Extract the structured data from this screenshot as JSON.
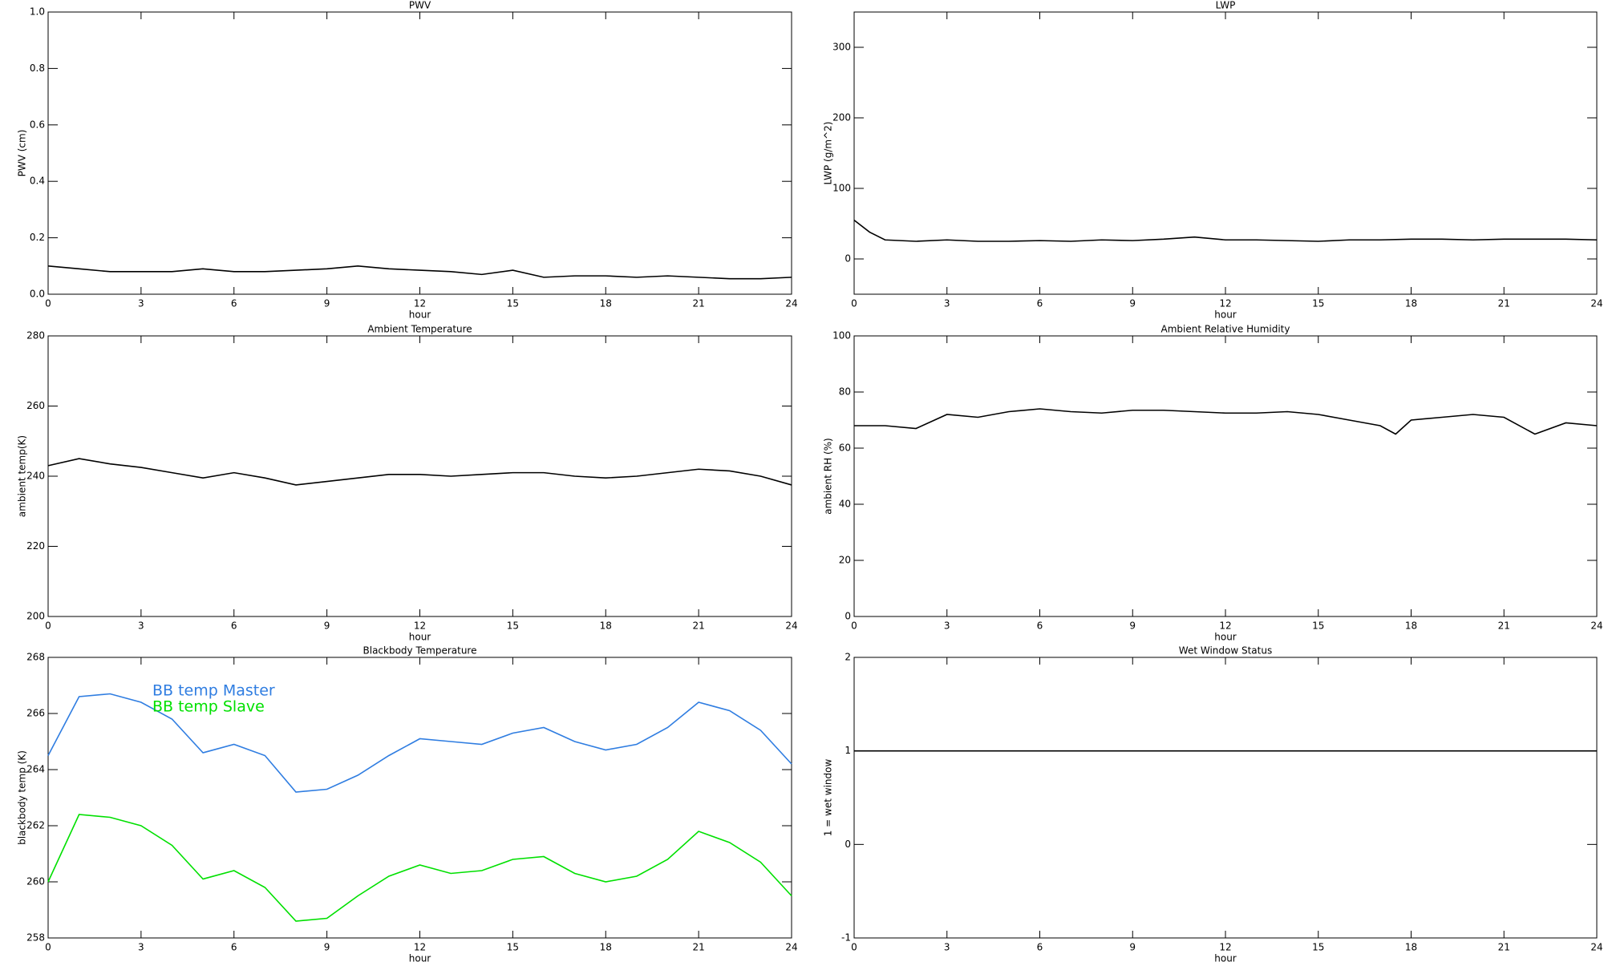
{
  "chart_data": [
    {
      "type": "line",
      "title": "PWV",
      "xlabel": "hour",
      "ylabel": "PWV (cm)",
      "color": "#000000",
      "x": [
        0,
        1,
        2,
        3,
        4,
        5,
        6,
        7,
        8,
        9,
        10,
        11,
        12,
        13,
        14,
        15,
        16,
        17,
        18,
        19,
        20,
        21,
        22,
        23,
        24
      ],
      "values": [
        0.1,
        0.09,
        0.08,
        0.08,
        0.08,
        0.09,
        0.08,
        0.08,
        0.085,
        0.09,
        0.1,
        0.09,
        0.085,
        0.08,
        0.07,
        0.085,
        0.06,
        0.065,
        0.065,
        0.06,
        0.065,
        0.06,
        0.055,
        0.055,
        0.06
      ],
      "xlim": [
        0,
        24
      ],
      "xticks": [
        0,
        3,
        6,
        9,
        12,
        15,
        18,
        21,
        24
      ],
      "ylim": [
        0,
        1
      ],
      "yticks": [
        {
          "value": 0,
          "label": "0.0"
        },
        0.2,
        0.4,
        0.6,
        0.8,
        {
          "value": 1,
          "label": "1.0"
        }
      ]
    },
    {
      "type": "line",
      "title": "LWP",
      "xlabel": "hour",
      "ylabel": "LWP (g/m^2)",
      "color": "#000000",
      "x": [
        0,
        0.5,
        1,
        2,
        3,
        4,
        5,
        6,
        7,
        8,
        9,
        10,
        11,
        12,
        13,
        14,
        15,
        16,
        17,
        18,
        19,
        20,
        21,
        22,
        23,
        24
      ],
      "values": [
        55,
        38,
        27,
        25,
        27,
        25,
        25,
        26,
        25,
        27,
        26,
        28,
        31,
        27,
        27,
        26,
        25,
        27,
        27,
        28,
        28,
        27,
        28,
        28,
        28,
        27
      ],
      "xlim": [
        0,
        24
      ],
      "xticks": [
        0,
        3,
        6,
        9,
        12,
        15,
        18,
        21,
        24
      ],
      "ylim": [
        -50,
        350
      ],
      "yticks": [
        0,
        100,
        200,
        300
      ]
    },
    {
      "type": "line",
      "title": "Ambient Temperature",
      "xlabel": "hour",
      "ylabel": "ambient temp(K)",
      "color": "#000000",
      "x": [
        0,
        1,
        2,
        3,
        4,
        5,
        6,
        7,
        8,
        9,
        10,
        11,
        12,
        13,
        14,
        15,
        16,
        17,
        18,
        19,
        20,
        21,
        22,
        23,
        24
      ],
      "values": [
        243,
        245,
        243.5,
        242.5,
        241,
        239.5,
        241,
        239.5,
        237.5,
        238.5,
        239.5,
        240.5,
        240.5,
        240,
        240.5,
        241,
        241,
        240,
        239.5,
        240,
        241,
        242,
        241.5,
        240,
        237.5
      ],
      "xlim": [
        0,
        24
      ],
      "xticks": [
        0,
        3,
        6,
        9,
        12,
        15,
        18,
        21,
        24
      ],
      "ylim": [
        200,
        280
      ],
      "yticks": [
        200,
        220,
        240,
        260,
        280
      ]
    },
    {
      "type": "line",
      "title": "Ambient Relative Humidity",
      "xlabel": "hour",
      "ylabel": "ambient RH (%)",
      "color": "#000000",
      "x": [
        0,
        1,
        2,
        3,
        4,
        5,
        6,
        7,
        8,
        9,
        10,
        11,
        12,
        13,
        14,
        15,
        16,
        17,
        17.5,
        18,
        19,
        20,
        21,
        22,
        23,
        24
      ],
      "values": [
        68,
        68,
        67,
        72,
        71,
        73,
        74,
        73,
        72.5,
        73.5,
        73.5,
        73,
        72.5,
        72.5,
        73,
        72,
        70,
        68,
        65,
        70,
        71,
        72,
        71,
        65,
        69,
        68
      ],
      "xlim": [
        0,
        24
      ],
      "xticks": [
        0,
        3,
        6,
        9,
        12,
        15,
        18,
        21,
        24
      ],
      "ylim": [
        0,
        100
      ],
      "yticks": [
        0,
        20,
        40,
        60,
        80,
        100
      ]
    },
    {
      "type": "line",
      "title": "Blackbody Temperature",
      "xlabel": "hour",
      "ylabel": "blackbody temp (K)",
      "legend": "upper left",
      "x": [
        0,
        1,
        2,
        3,
        4,
        5,
        6,
        7,
        8,
        9,
        10,
        11,
        12,
        13,
        14,
        15,
        16,
        17,
        18,
        19,
        20,
        21,
        22,
        23,
        24
      ],
      "series": [
        {
          "name": "BB temp Master",
          "color": "#2f7de1",
          "values": [
            264.5,
            266.6,
            266.7,
            266.4,
            265.8,
            264.6,
            264.9,
            264.5,
            263.2,
            263.3,
            263.8,
            264.5,
            265.1,
            265.0,
            264.9,
            265.3,
            265.5,
            265.0,
            264.7,
            264.9,
            265.5,
            266.4,
            266.1,
            265.4,
            264.2
          ]
        },
        {
          "name": "BB temp Slave",
          "color": "#00e000",
          "values": [
            260,
            262.4,
            262.3,
            262,
            261.3,
            260.1,
            260.4,
            259.8,
            258.6,
            258.7,
            259.5,
            260.2,
            260.6,
            260.3,
            260.4,
            260.8,
            260.9,
            260.3,
            260.0,
            260.2,
            260.8,
            261.8,
            261.4,
            260.7,
            259.5
          ]
        }
      ],
      "xlim": [
        0,
        24
      ],
      "xticks": [
        0,
        3,
        6,
        9,
        12,
        15,
        18,
        21,
        24
      ],
      "ylim": [
        258,
        268
      ],
      "yticks": [
        258,
        260,
        262,
        264,
        266,
        268
      ]
    },
    {
      "type": "line",
      "title": "Wet Window Status",
      "xlabel": "hour",
      "ylabel": "1 = wet window",
      "color": "#000000",
      "x": [
        0,
        24
      ],
      "values": [
        1,
        1
      ],
      "xlim": [
        0,
        24
      ],
      "xticks": [
        0,
        3,
        6,
        9,
        12,
        15,
        18,
        21,
        24
      ],
      "ylim": [
        -1,
        2
      ],
      "yticks": [
        -1,
        0,
        1,
        2
      ]
    }
  ]
}
